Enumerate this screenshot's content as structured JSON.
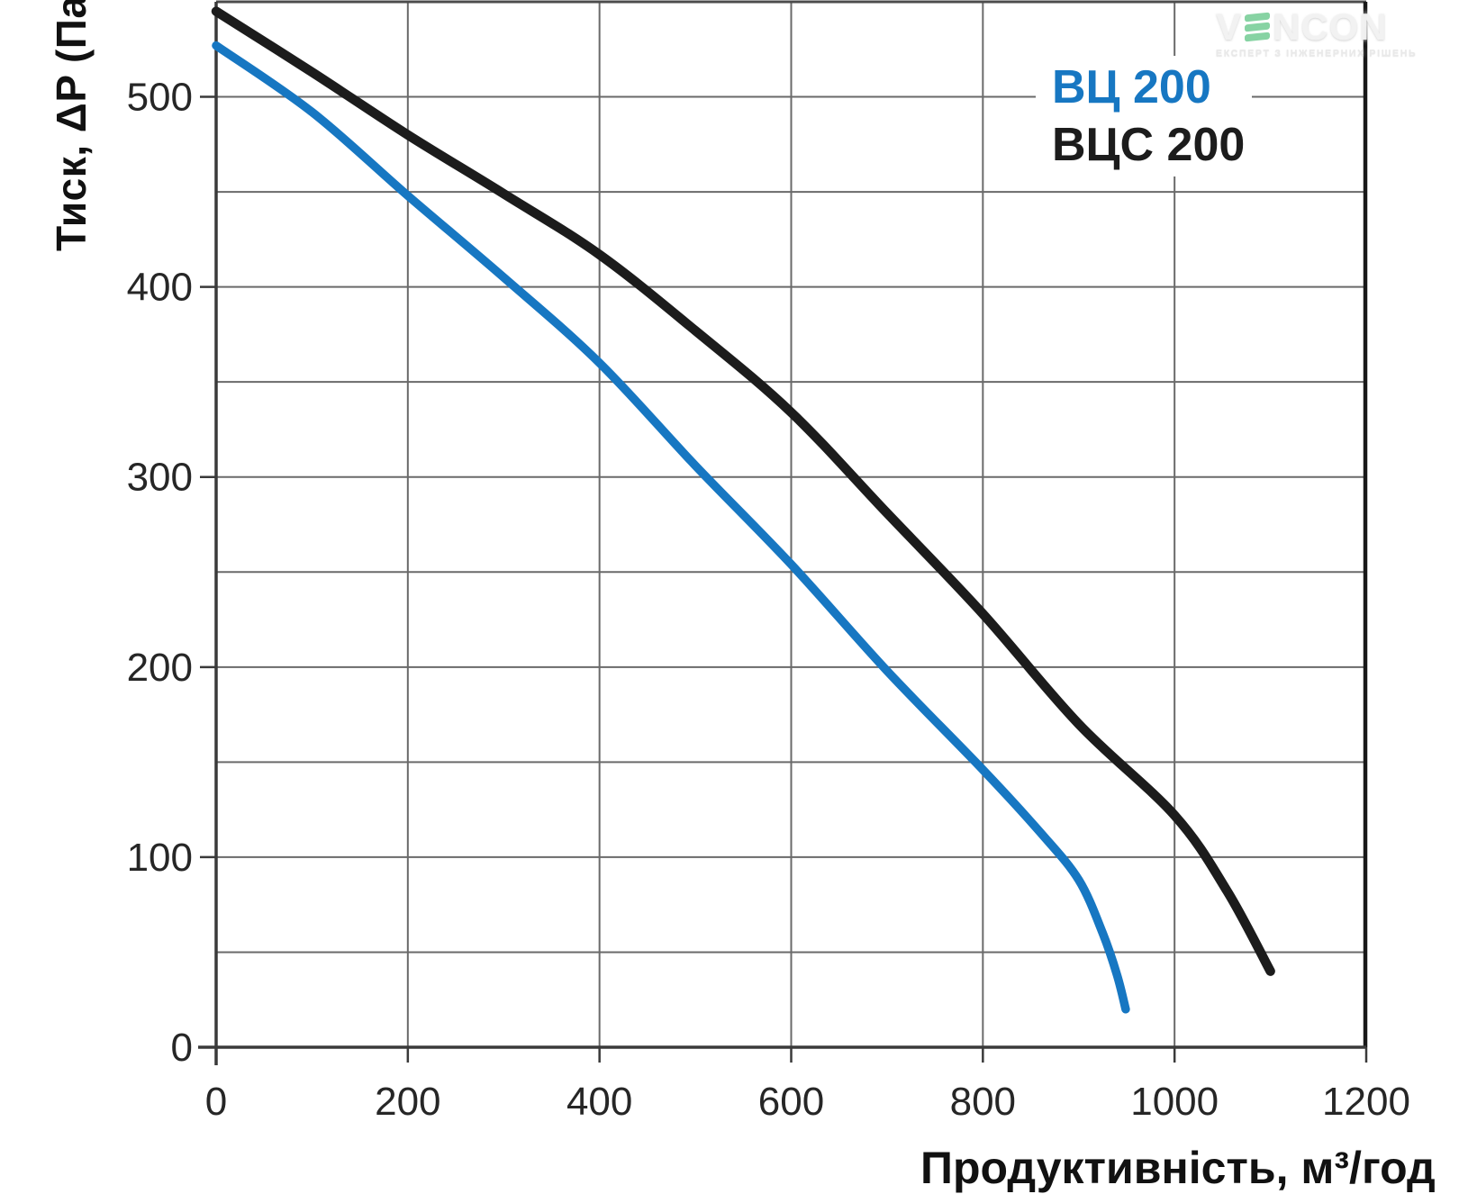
{
  "logo": {
    "brand_v": "V",
    "brand_rest": "NCON",
    "tagline": "ЕКСПЕРТ З ІНЖЕНЕРНИХ РІШЕНЬ",
    "green": "#87d3a3"
  },
  "chart_data": {
    "type": "line",
    "title": "",
    "xlabel": "Продуктивність, м³/год",
    "ylabel": "Тиск, ΔP (Па)",
    "xlim": [
      0,
      1200
    ],
    "ylim": [
      0,
      550
    ],
    "x_ticks": [
      0,
      200,
      400,
      600,
      800,
      1000,
      1200
    ],
    "y_ticks": [
      0,
      100,
      200,
      300,
      400,
      500
    ],
    "x_grid_step": 200,
    "y_grid_step": 50,
    "grid": "on",
    "legend_position": "top-right",
    "series": [
      {
        "name": "ВЦ 200",
        "color": "#1777c2",
        "points": [
          [
            0,
            527
          ],
          [
            100,
            492
          ],
          [
            200,
            448
          ],
          [
            300,
            405
          ],
          [
            400,
            360
          ],
          [
            500,
            306
          ],
          [
            600,
            254
          ],
          [
            700,
            198
          ],
          [
            800,
            146
          ],
          [
            860,
            113
          ],
          [
            900,
            88
          ],
          [
            925,
            60
          ],
          [
            940,
            38
          ],
          [
            949,
            20
          ]
        ]
      },
      {
        "name": "ВЦС 200",
        "color": "#1c1c1c",
        "points": [
          [
            0,
            545
          ],
          [
            100,
            513
          ],
          [
            200,
            480
          ],
          [
            300,
            449
          ],
          [
            400,
            417
          ],
          [
            500,
            377
          ],
          [
            600,
            334
          ],
          [
            700,
            281
          ],
          [
            800,
            228
          ],
          [
            900,
            170
          ],
          [
            1000,
            122
          ],
          [
            1055,
            82
          ],
          [
            1100,
            40
          ]
        ]
      }
    ],
    "style": {
      "grid_color": "#6a6a6a",
      "axis_color": "#3a3a3a",
      "right_border_color": "#181818",
      "top_border_color": "#4c4c4c",
      "tick_label_color": "#262626",
      "background": "#ffffff"
    }
  }
}
